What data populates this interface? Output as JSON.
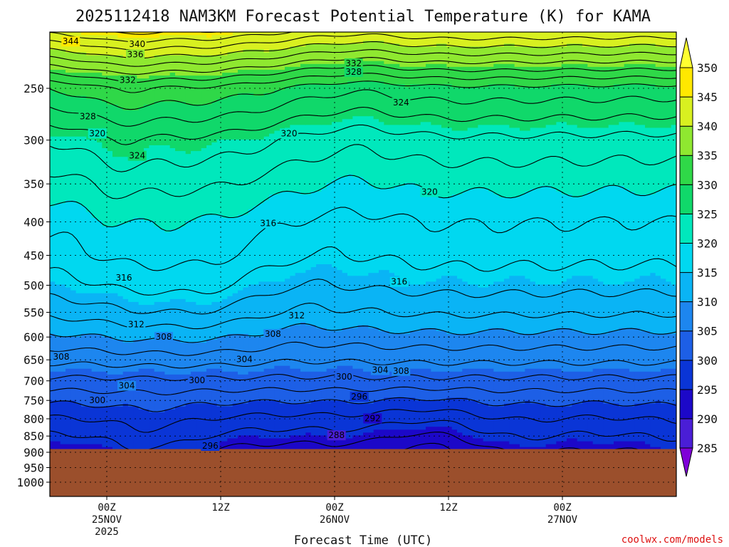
{
  "chart_data": {
    "type": "heatmap",
    "title": "2025112418 NAM3KM Forecast Potential Temperature (K) for KAMA",
    "xlabel": "Forecast Time (UTC)",
    "ylabel": "",
    "ylim": [
      1000,
      200
    ],
    "y_scale": "log-pressure",
    "y_ticks": [
      250,
      300,
      350,
      400,
      450,
      500,
      550,
      600,
      650,
      700,
      750,
      800,
      850,
      900,
      950,
      1000
    ],
    "x_range": [
      "2025-11-24T18Z",
      "2025-11-27T12Z"
    ],
    "x_ticks": [
      {
        "time": "2025-11-25T00Z",
        "label": [
          "00Z",
          "25NOV",
          "2025"
        ]
      },
      {
        "time": "2025-11-25T12Z",
        "label": [
          "12Z"
        ]
      },
      {
        "time": "2025-11-26T00Z",
        "label": [
          "00Z",
          "26NOV"
        ]
      },
      {
        "time": "2025-11-26T12Z",
        "label": [
          "12Z"
        ]
      },
      {
        "time": "2025-11-27T00Z",
        "label": [
          "00Z",
          "27NOV"
        ]
      }
    ],
    "grid": true,
    "terrain_top_hPa": 890,
    "colorbar": {
      "levels": [
        285,
        290,
        295,
        300,
        305,
        310,
        315,
        320,
        325,
        330,
        335,
        340,
        345,
        350
      ],
      "colors": [
        "#7f00d8",
        "#4a1ed6",
        "#1c08c8",
        "#0a35d6",
        "#1d5fe6",
        "#1d86ef",
        "#0ab4f5",
        "#00d8f0",
        "#00e8bc",
        "#10d86a",
        "#2fd848",
        "#8fe830",
        "#d8f020",
        "#ffe800",
        "#ffff30"
      ],
      "placement": "right"
    },
    "contour_labels": [
      {
        "value": 344,
        "time_h": -3.8,
        "p": 212
      },
      {
        "value": 340,
        "time_h": 3.2,
        "p": 214
      },
      {
        "value": 336,
        "time_h": 3.0,
        "p": 222
      },
      {
        "value": 332,
        "time_h": 2.2,
        "p": 243
      },
      {
        "value": 332,
        "time_h": 26.0,
        "p": 229
      },
      {
        "value": 328,
        "time_h": 26.0,
        "p": 236
      },
      {
        "value": 328,
        "time_h": -2.0,
        "p": 276
      },
      {
        "value": 324,
        "time_h": 31.0,
        "p": 263
      },
      {
        "value": 324,
        "time_h": 3.2,
        "p": 317
      },
      {
        "value": 320,
        "time_h": -1.0,
        "p": 293
      },
      {
        "value": 320,
        "time_h": 19.2,
        "p": 293
      },
      {
        "value": 320,
        "time_h": 34.0,
        "p": 360
      },
      {
        "value": 316,
        "time_h": 1.8,
        "p": 487
      },
      {
        "value": 316,
        "time_h": 17.0,
        "p": 402
      },
      {
        "value": 316,
        "time_h": 30.8,
        "p": 494
      },
      {
        "value": 312,
        "time_h": 3.1,
        "p": 574
      },
      {
        "value": 312,
        "time_h": 20.0,
        "p": 556
      },
      {
        "value": 308,
        "time_h": 6.0,
        "p": 600
      },
      {
        "value": 308,
        "time_h": 17.5,
        "p": 594
      },
      {
        "value": 308,
        "time_h": -4.8,
        "p": 643
      },
      {
        "value": 308,
        "time_h": 31.0,
        "p": 676
      },
      {
        "value": 304,
        "time_h": 14.5,
        "p": 649
      },
      {
        "value": 304,
        "time_h": 2.1,
        "p": 712
      },
      {
        "value": 304,
        "time_h": 28.8,
        "p": 674
      },
      {
        "value": 300,
        "time_h": 9.5,
        "p": 699
      },
      {
        "value": 300,
        "time_h": 25.0,
        "p": 690
      },
      {
        "value": 300,
        "time_h": -1.0,
        "p": 750
      },
      {
        "value": 296,
        "time_h": 26.6,
        "p": 740
      },
      {
        "value": 296,
        "time_h": 10.9,
        "p": 880
      },
      {
        "value": 292,
        "time_h": 28.0,
        "p": 799
      },
      {
        "value": 288,
        "time_h": 24.2,
        "p": 848
      }
    ]
  },
  "credit": "coolwx.com/models"
}
